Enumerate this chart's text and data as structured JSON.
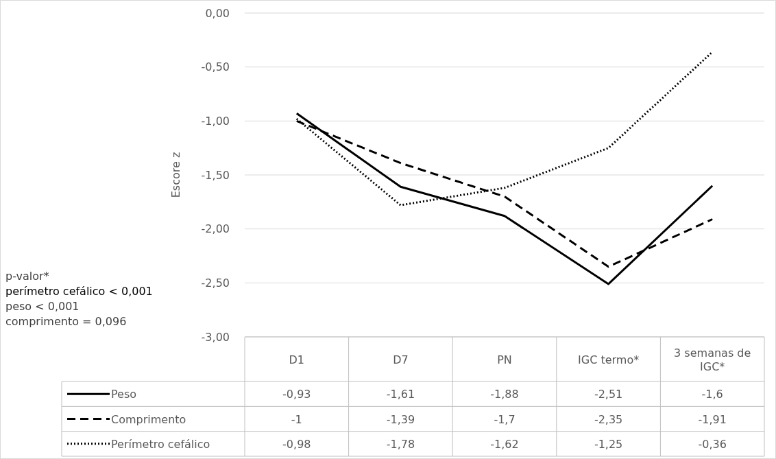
{
  "chart_data": {
    "type": "line",
    "ylabel": "Escore z",
    "categories": [
      "D1",
      "D7",
      "PN",
      "IGC termo*",
      "3 semanas de IGC*"
    ],
    "series": [
      {
        "name": "Peso",
        "color": "#000000",
        "line_style": "solid",
        "values": [
          -0.93,
          -1.61,
          -1.88,
          -2.51,
          -1.6
        ],
        "value_labels": [
          "-0,93",
          "-1,61",
          "-1,88",
          "-2,51",
          "-1,6"
        ]
      },
      {
        "name": "Comprimento",
        "color": "#000000",
        "line_style": "dashed",
        "values": [
          -1,
          -1.39,
          -1.7,
          -2.35,
          -1.91
        ],
        "value_labels": [
          "-1",
          "-1,39",
          "-1,7",
          "-2,35",
          "-1,91"
        ]
      },
      {
        "name": "Perímetro cefálico",
        "color": "#000000",
        "line_style": "dotted",
        "values": [
          -0.98,
          -1.78,
          -1.62,
          -1.25,
          -0.36
        ],
        "value_labels": [
          "-0,98",
          "-1,78",
          "-1,62",
          "-1,25",
          "-0,36"
        ]
      }
    ],
    "ylim": [
      -3,
      0
    ],
    "yticks": [
      {
        "value": 0,
        "label": "0,00"
      },
      {
        "value": -0.5,
        "label": "-0,50"
      },
      {
        "value": -1,
        "label": "-1,00"
      },
      {
        "value": -1.5,
        "label": "-1,50"
      },
      {
        "value": -2,
        "label": "-2,00"
      },
      {
        "value": -2.5,
        "label": "-2,50"
      },
      {
        "value": -3,
        "label": "-3,00"
      }
    ],
    "grid": "y",
    "legend": "bottom",
    "marker": "none",
    "annotations": [
      "p-valor*",
      "perímetro cefálico < 0,001",
      "peso < 0,001",
      "comprimento = 0,096"
    ]
  }
}
